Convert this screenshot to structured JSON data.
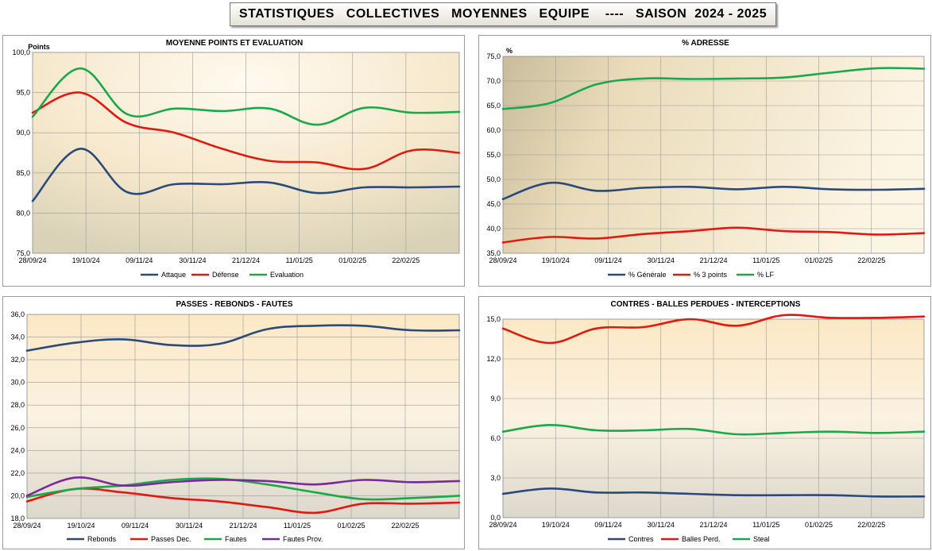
{
  "banner": {
    "title": "STATISTIQUES   COLLECTIVES   MOYENNES   EQUIPE    ----   SAISON  2024 - 2025"
  },
  "colors": {
    "blue": "#2a4a7a",
    "red": "#e01a10",
    "green": "#1aa84a",
    "purple": "#7a2a9a"
  },
  "chart_data": [
    {
      "type": "line",
      "title": "MOYENNE   POINTS  ET  EVALUATION",
      "ylabel": "Points",
      "ylim": [
        75,
        100
      ],
      "yticks": [
        "75,0",
        "80,0",
        "85,0",
        "90,0",
        "95,0",
        "100,0"
      ],
      "x_ticks": [
        "28/09/24",
        "19/10/24",
        "09/11/24",
        "30/11/24",
        "21/12/24",
        "11/01/25",
        "01/02/25",
        "22/02/25"
      ],
      "legend_position": "bottom",
      "series": [
        {
          "name": "Attaque",
          "color": "#2a4a7a",
          "values": [
            81.5,
            88.0,
            82.6,
            83.6,
            83.6,
            83.8,
            82.5,
            83.2,
            83.2,
            83.3
          ]
        },
        {
          "name": "Défense",
          "color": "#e01a10",
          "values": [
            92.5,
            95.0,
            91.2,
            90.0,
            88.0,
            86.5,
            86.3,
            85.5,
            87.8,
            87.5
          ]
        },
        {
          "name": "Evaluation",
          "color": "#1aa84a",
          "values": [
            92.0,
            98.0,
            92.3,
            93.0,
            92.7,
            93.0,
            91.0,
            93.1,
            92.5,
            92.6
          ]
        }
      ]
    },
    {
      "type": "line",
      "title": "% ADRESSE",
      "ylabel": "%",
      "ylim": [
        35,
        75
      ],
      "yticks": [
        "35,0",
        "40,0",
        "45,0",
        "50,0",
        "55,0",
        "60,0",
        "65,0",
        "70,0",
        "75,0"
      ],
      "x_ticks": [
        "28/09/24",
        "19/10/24",
        "09/11/24",
        "30/11/24",
        "21/12/24",
        "11/01/25",
        "01/02/25",
        "22/02/25"
      ],
      "legend_position": "bottom",
      "series": [
        {
          "name": "% Générale",
          "color": "#2a4a7a",
          "values": [
            46.0,
            49.3,
            47.7,
            48.3,
            48.5,
            48.0,
            48.5,
            48.0,
            47.9,
            48.1
          ]
        },
        {
          "name": "% 3 points",
          "color": "#e01a10",
          "values": [
            37.2,
            38.3,
            38.0,
            38.9,
            39.5,
            40.2,
            39.5,
            39.3,
            38.8,
            39.1
          ]
        },
        {
          "name": "% LF",
          "color": "#1aa84a",
          "values": [
            64.3,
            65.5,
            69.3,
            70.5,
            70.4,
            70.5,
            70.7,
            71.7,
            72.6,
            72.5
          ]
        }
      ]
    },
    {
      "type": "line",
      "title": "PASSES  -  REBONDS  -  FAUTES",
      "ylabel": "",
      "ylim": [
        18,
        36
      ],
      "yticks": [
        "18,0",
        "20,0",
        "22,0",
        "24,0",
        "26,0",
        "28,0",
        "30,0",
        "32,0",
        "34,0",
        "36,0"
      ],
      "x_ticks": [
        "28/09/24",
        "19/10/24",
        "09/11/24",
        "30/11/24",
        "21/12/24",
        "11/01/25",
        "01/02/25",
        "22/02/25"
      ],
      "legend_position": "bottom",
      "series": [
        {
          "name": "Rebonds",
          "color": "#2a4a7a",
          "values": [
            32.8,
            33.5,
            33.8,
            33.3,
            33.4,
            34.7,
            35.0,
            35.0,
            34.6,
            34.6
          ]
        },
        {
          "name": "Passes Dec.",
          "color": "#e01a10",
          "values": [
            19.5,
            20.6,
            20.3,
            19.8,
            19.5,
            19.0,
            18.5,
            19.3,
            19.3,
            19.4
          ]
        },
        {
          "name": "Fautes",
          "color": "#1aa84a",
          "values": [
            19.9,
            20.6,
            20.9,
            21.4,
            21.5,
            21.0,
            20.3,
            19.7,
            19.8,
            20.0
          ]
        },
        {
          "name": "Fautes Prov.",
          "color": "#7a2a9a",
          "values": [
            20.0,
            21.6,
            20.9,
            21.2,
            21.4,
            21.3,
            21.0,
            21.4,
            21.2,
            21.3
          ]
        }
      ]
    },
    {
      "type": "line",
      "title": "CONTRES  -  BALLES PERDUES  -  INTERCEPTIONS",
      "ylabel": "",
      "ylim": [
        0,
        15
      ],
      "yticks": [
        "0,0",
        "3,0",
        "6,0",
        "9,0",
        "12,0",
        "15,0"
      ],
      "x_ticks": [
        "28/09/24",
        "19/10/24",
        "09/11/24",
        "30/11/24",
        "21/12/24",
        "11/01/25",
        "01/02/25",
        "22/02/25"
      ],
      "legend_position": "bottom",
      "series": [
        {
          "name": "Contres",
          "color": "#2a4a7a",
          "values": [
            1.8,
            2.2,
            1.9,
            1.9,
            1.8,
            1.7,
            1.7,
            1.7,
            1.6,
            1.6
          ]
        },
        {
          "name": "Balles Perd.",
          "color": "#e01a10",
          "values": [
            14.3,
            13.2,
            14.3,
            14.4,
            15.0,
            14.5,
            15.3,
            15.1,
            15.1,
            15.2
          ]
        },
        {
          "name": "Steal",
          "color": "#1aa84a",
          "values": [
            6.5,
            7.0,
            6.6,
            6.6,
            6.7,
            6.3,
            6.4,
            6.5,
            6.4,
            6.5
          ]
        }
      ]
    }
  ]
}
